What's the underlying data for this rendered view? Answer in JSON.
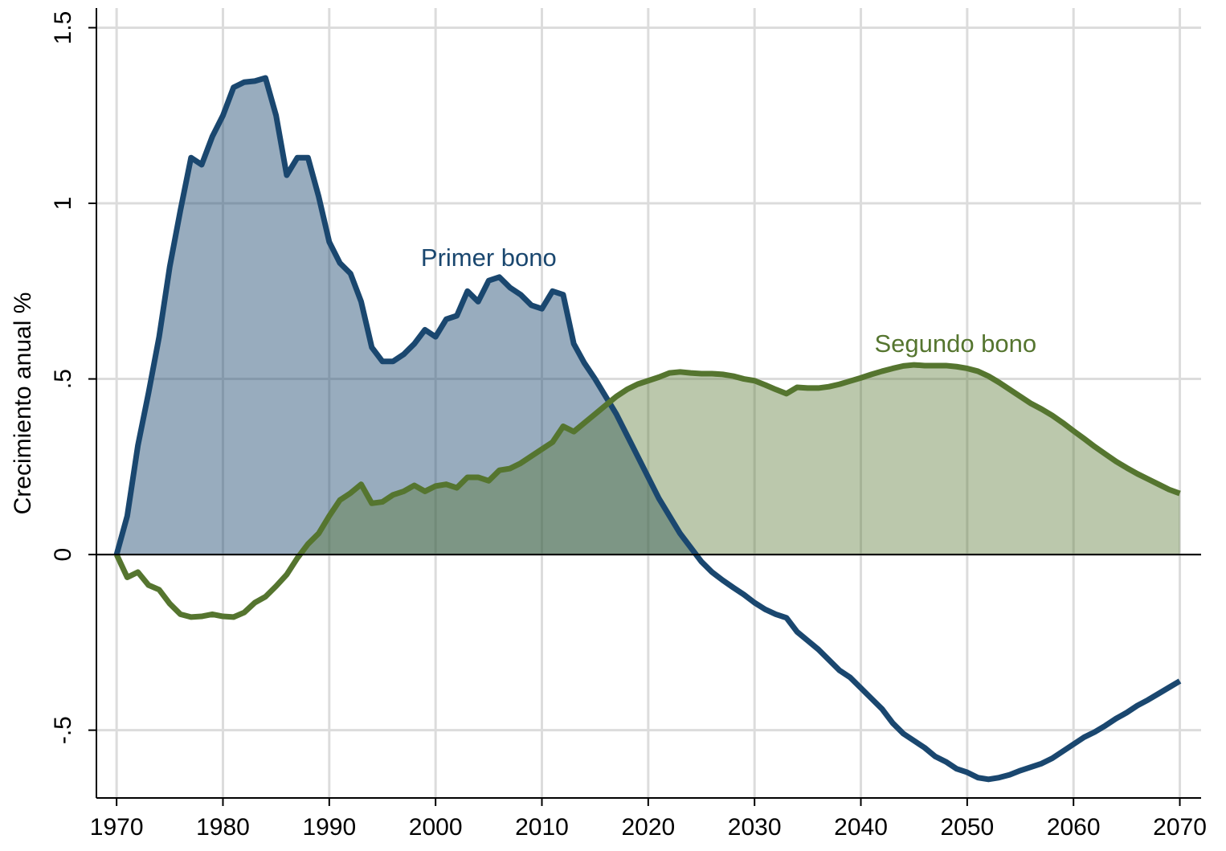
{
  "chart_data": {
    "type": "line",
    "y_label": "Crecimiento anual %",
    "x": [
      1970,
      1971,
      1972,
      1973,
      1974,
      1975,
      1976,
      1977,
      1978,
      1979,
      1980,
      1981,
      1982,
      1983,
      1984,
      1985,
      1986,
      1987,
      1988,
      1989,
      1990,
      1991,
      1992,
      1993,
      1994,
      1995,
      1996,
      1997,
      1998,
      1999,
      2000,
      2001,
      2002,
      2003,
      2004,
      2005,
      2006,
      2007,
      2008,
      2009,
      2010,
      2011,
      2012,
      2013,
      2014,
      2015,
      2016,
      2017,
      2018,
      2019,
      2020,
      2021,
      2022,
      2023,
      2024,
      2025,
      2026,
      2027,
      2028,
      2029,
      2030,
      2031,
      2032,
      2033,
      2034,
      2035,
      2036,
      2037,
      2038,
      2039,
      2040,
      2041,
      2042,
      2043,
      2044,
      2045,
      2046,
      2047,
      2048,
      2049,
      2050,
      2051,
      2052,
      2053,
      2054,
      2055,
      2056,
      2057,
      2058,
      2059,
      2060,
      2061,
      2062,
      2063,
      2064,
      2065,
      2066,
      2067,
      2068,
      2069,
      2070
    ],
    "series": [
      {
        "name": "Primer bono",
        "color": "#1a476f",
        "fill_opacity": 0.45,
        "values": [
          0,
          0.11,
          0.31,
          0.46,
          0.62,
          0.82,
          0.98,
          1.13,
          1.11,
          1.19,
          1.25,
          1.33,
          1.345,
          1.348,
          1.357,
          1.25,
          1.08,
          1.13,
          1.13,
          1.02,
          0.89,
          0.83,
          0.8,
          0.72,
          0.59,
          0.55,
          0.55,
          0.57,
          0.6,
          0.64,
          0.62,
          0.67,
          0.68,
          0.75,
          0.72,
          0.78,
          0.79,
          0.76,
          0.74,
          0.71,
          0.7,
          0.75,
          0.74,
          0.6,
          0.545,
          0.5,
          0.45,
          0.4,
          0.34,
          0.28,
          0.22,
          0.16,
          0.11,
          0.06,
          0.02,
          -0.02,
          -0.05,
          -0.073,
          -0.094,
          -0.114,
          -0.137,
          -0.156,
          -0.17,
          -0.18,
          -0.22,
          -0.245,
          -0.27,
          -0.3,
          -0.33,
          -0.35,
          -0.38,
          -0.41,
          -0.44,
          -0.48,
          -0.51,
          -0.53,
          -0.55,
          -0.575,
          -0.59,
          -0.61,
          -0.62,
          -0.635,
          -0.64,
          -0.635,
          -0.627,
          -0.615,
          -0.605,
          -0.595,
          -0.58,
          -0.56,
          -0.54,
          -0.52,
          -0.505,
          -0.487,
          -0.467,
          -0.45,
          -0.43,
          -0.414,
          -0.396,
          -0.378,
          -0.36
        ]
      },
      {
        "name": "Segundo bono",
        "color": "#55752f",
        "fill_opacity": 0.4,
        "values": [
          0,
          -0.065,
          -0.05,
          -0.087,
          -0.1,
          -0.14,
          -0.17,
          -0.178,
          -0.176,
          -0.17,
          -0.176,
          -0.178,
          -0.165,
          -0.137,
          -0.12,
          -0.09,
          -0.057,
          -0.01,
          0.03,
          0.06,
          0.11,
          0.155,
          0.175,
          0.2,
          0.146,
          0.15,
          0.17,
          0.18,
          0.197,
          0.18,
          0.195,
          0.2,
          0.19,
          0.22,
          0.22,
          0.21,
          0.24,
          0.245,
          0.26,
          0.28,
          0.3,
          0.32,
          0.365,
          0.35,
          0.375,
          0.4,
          0.425,
          0.45,
          0.47,
          0.485,
          0.495,
          0.505,
          0.517,
          0.52,
          0.517,
          0.515,
          0.515,
          0.513,
          0.508,
          0.5,
          0.495,
          0.483,
          0.47,
          0.458,
          0.476,
          0.474,
          0.474,
          0.478,
          0.485,
          0.494,
          0.503,
          0.513,
          0.522,
          0.53,
          0.537,
          0.54,
          0.538,
          0.538,
          0.538,
          0.535,
          0.53,
          0.522,
          0.508,
          0.49,
          0.47,
          0.45,
          0.43,
          0.414,
          0.396,
          0.375,
          0.352,
          0.33,
          0.307,
          0.286,
          0.265,
          0.247,
          0.23,
          0.215,
          0.2,
          0.185,
          0.174
        ]
      }
    ],
    "annotations": [
      {
        "text": "Primer bono",
        "x": 2005,
        "y": 0.84,
        "series": 0
      },
      {
        "text": "Segundo bono",
        "x": 2048.9,
        "y": 0.595,
        "series": 1
      }
    ],
    "xlim": [
      1968.1,
      2072
    ],
    "ylim": [
      -0.693,
      1.556
    ],
    "xticks": [
      1970,
      1980,
      1990,
      2000,
      2010,
      2020,
      2030,
      2040,
      2050,
      2060,
      2070
    ],
    "yticks": [
      {
        "value": -0.5,
        "label": "-.5"
      },
      0,
      {
        "value": 0.5,
        "label": ".5"
      },
      1,
      1.5
    ],
    "grid": true,
    "zero_line": true
  }
}
